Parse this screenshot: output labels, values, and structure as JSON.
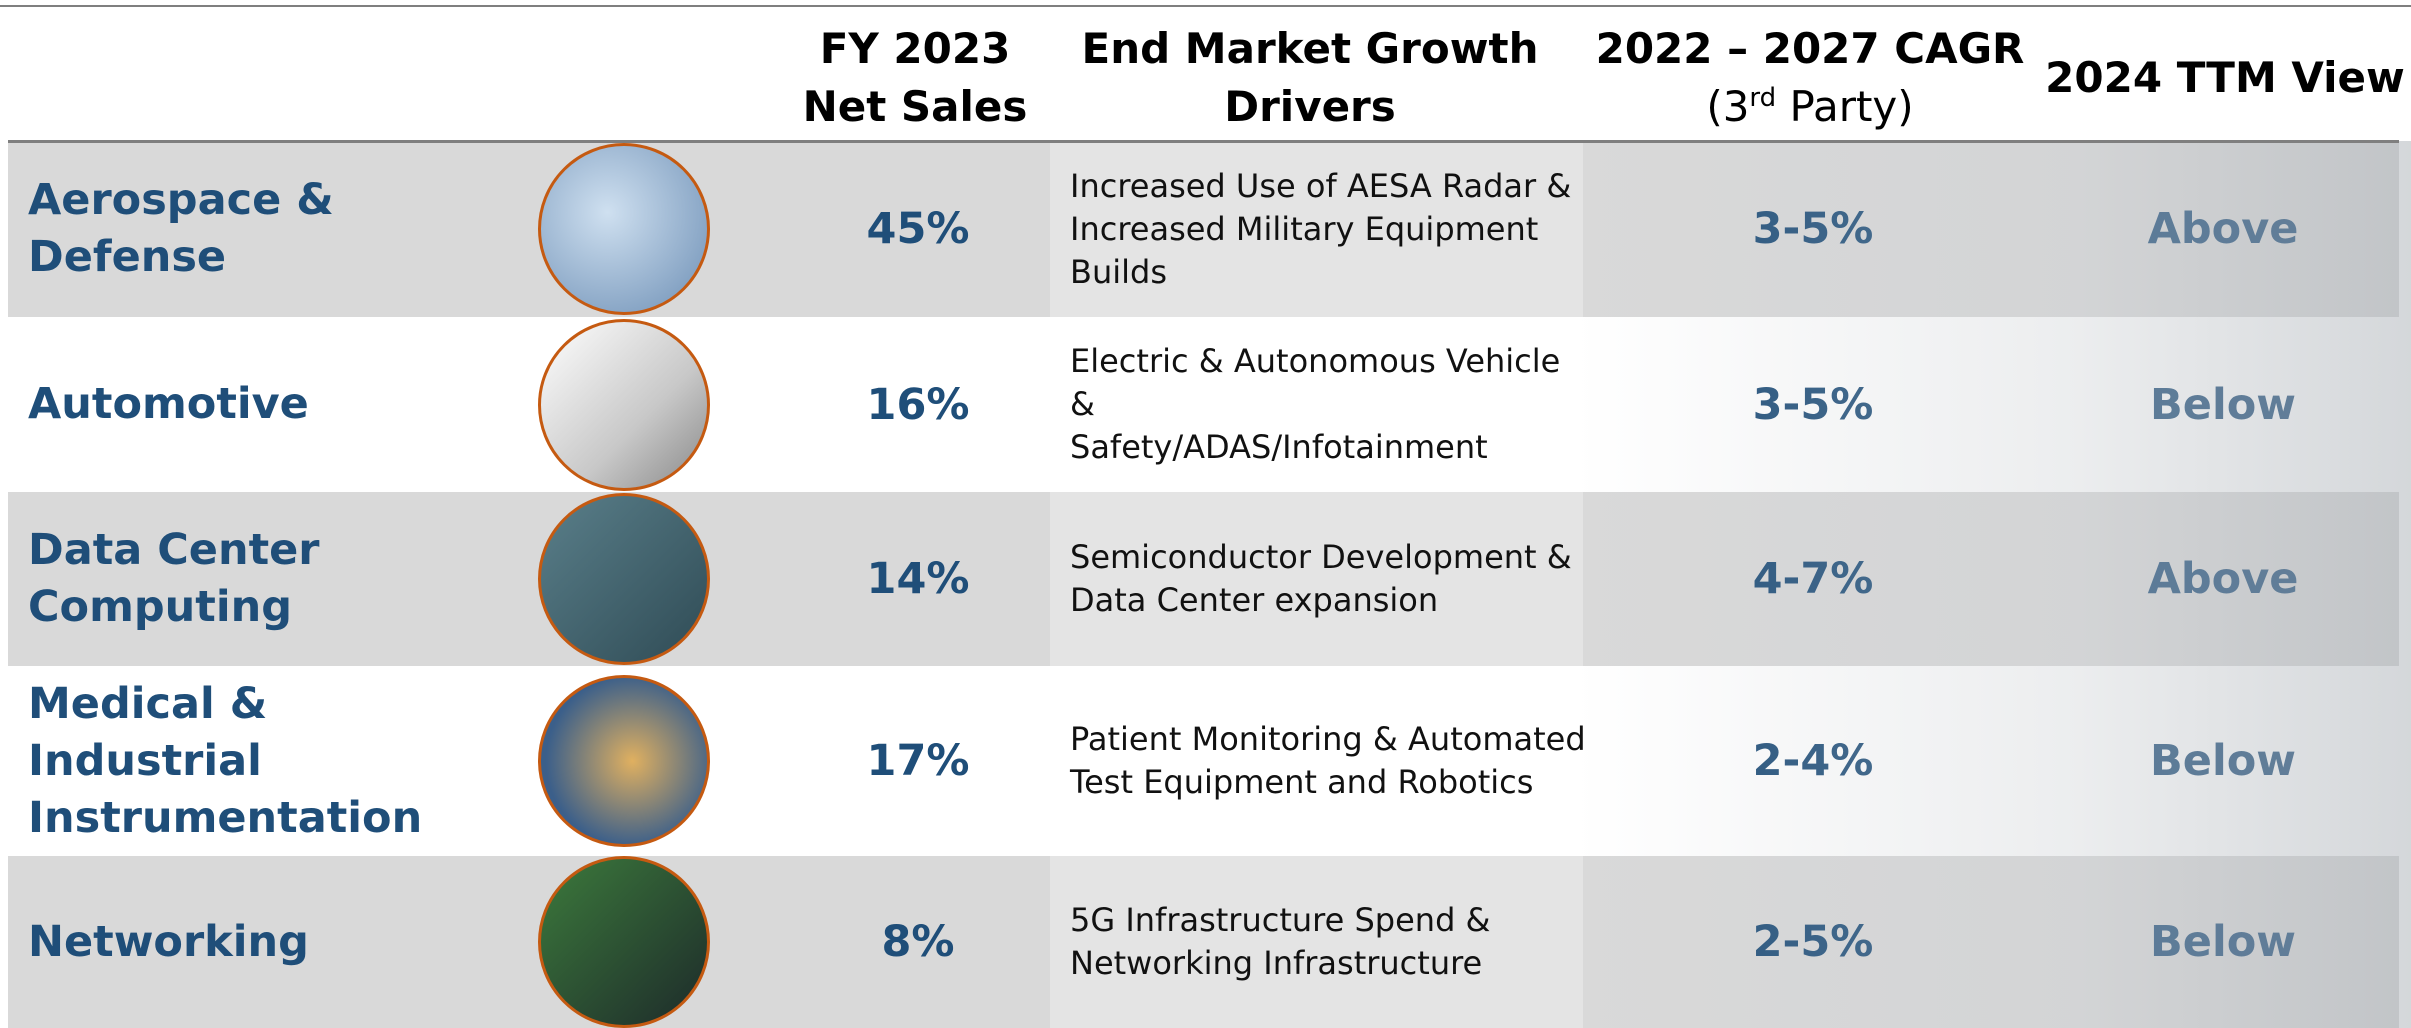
{
  "header": {
    "net_sales": "FY 2023\nNet Sales",
    "drivers": "End Market Growth\nDrivers",
    "cagr": "2022 – 2027 CAGR",
    "cagr_note": {
      "before": "(3",
      "sup": "rd",
      "after": " Party)"
    },
    "view": "2024 TTM View"
  },
  "table": {
    "rows": [
      {
        "segment": "Aerospace & Defense",
        "net_sales": "45%",
        "drivers": "Increased Use of AESA Radar &\nIncreased Military Equipment\nBuilds",
        "cagr": "3-5%",
        "view": "Above"
      },
      {
        "segment": "Automotive",
        "net_sales": "16%",
        "drivers": "Electric & Autonomous Vehicle &\nSafety/ADAS/Infotainment",
        "cagr": "3-5%",
        "view": "Below"
      },
      {
        "segment": "Data Center Computing",
        "net_sales": "14%",
        "drivers": "Semiconductor Development &\nData Center expansion",
        "cagr": "4-7%",
        "view": "Above"
      },
      {
        "segment": "Medical &\nIndustrial\nInstrumentation",
        "net_sales": "17%",
        "drivers": "Patient Monitoring & Automated\nTest Equipment and Robotics",
        "cagr": "2-4%",
        "view": "Below"
      },
      {
        "segment": "Networking",
        "net_sales": "8%",
        "drivers": "5G Infrastructure Spend &\nNetworking Infrastructure",
        "cagr": "2-5%",
        "view": "Below"
      }
    ]
  }
}
